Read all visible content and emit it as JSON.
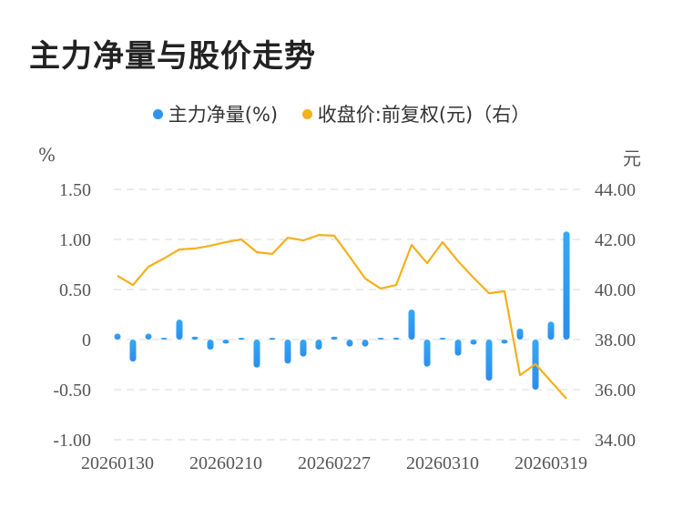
{
  "title": "主力净量与股价走势",
  "legend": [
    {
      "label": "主力净量(%)",
      "color": "#2b95ef"
    },
    {
      "label": "收盘价:前复权(元)（右）",
      "color": "#f5b01a"
    }
  ],
  "axes": {
    "left_unit": "%",
    "right_unit": "元",
    "left_ticks": [
      "1.50",
      "1.00",
      "0.50",
      "0",
      "-0.50",
      "-1.00"
    ],
    "right_ticks": [
      "44.00",
      "42.00",
      "40.00",
      "38.00",
      "36.00",
      "34.00"
    ],
    "x_ticks": [
      "20260130",
      "20260210",
      "20260227",
      "20260310",
      "20260319"
    ]
  },
  "chart_data": {
    "type": "bar+line",
    "title": "主力净量与股价走势",
    "x_tick_labels": [
      "20260130",
      "20260210",
      "20260227",
      "20260310",
      "20260319"
    ],
    "series": [
      {
        "name": "主力净量(%)",
        "type": "bar",
        "axis": "left",
        "color": "#2b95ef",
        "values": [
          0.06,
          -0.22,
          0.06,
          0.01,
          0.2,
          0.03,
          -0.1,
          -0.04,
          0.01,
          -0.28,
          0.0,
          -0.24,
          -0.17,
          -0.1,
          0.03,
          -0.07,
          -0.07,
          0.0,
          0.02,
          0.3,
          -0.27,
          0.0,
          -0.16,
          -0.05,
          -0.41,
          -0.04,
          0.11,
          -0.5,
          0.18,
          1.08
        ]
      },
      {
        "name": "收盘价:前复权(元)（右）",
        "type": "line",
        "axis": "right",
        "color": "#f5b01a",
        "values": [
          40.55,
          40.18,
          40.91,
          41.24,
          41.6,
          41.64,
          41.75,
          41.89,
          42.0,
          41.49,
          41.42,
          42.07,
          41.96,
          42.18,
          42.15,
          41.31,
          40.44,
          40.04,
          40.18,
          41.78,
          41.05,
          41.89,
          41.13,
          40.47,
          39.85,
          39.93,
          36.58,
          37.02,
          36.33,
          35.64
        ]
      }
    ],
    "ylim_left": [
      -1.0,
      1.5
    ],
    "ylim_right": [
      34.0,
      44.0
    ],
    "ylabel_left": "%",
    "ylabel_right": "元",
    "grid": "dashed horizontal",
    "legend_position": "top"
  }
}
